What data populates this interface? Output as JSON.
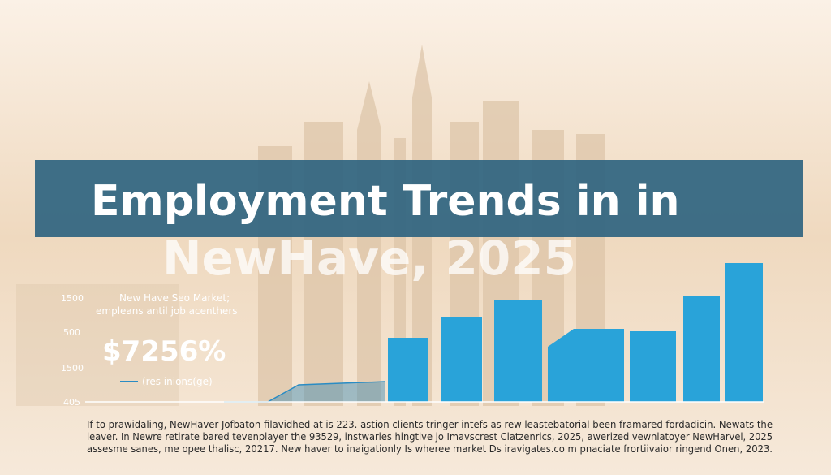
{
  "header": {
    "title_line1": "Employment Trends in in",
    "title_line2": "NewHave, 2025"
  },
  "panel": {
    "axis_labels": [
      "1500",
      "500",
      "1500",
      "405"
    ],
    "subtitle_line1": "New Have Seo Market;",
    "subtitle_line2": "empleans antil job acenthers",
    "highlight": "$7256%",
    "legend": "(res inions(ge)"
  },
  "footer": {
    "lines": [
      "If to prawidaling, NewHaver Jofbaton filavidhed at is 223. astion clients tringer intefs as rew leastebatorial been framared fordadicin. Newats the",
      "leaver. In Newre retirate bared tevenplayer the 93529, instwaries hingtive jo Imavscrest Clatzenrics, 2025, awerized vewnlatoyer NewHarvel, 2025",
      "assesme sanes, me opee thalisc, 20217. New haver to inaigationly Is wheree market Ds iravigates.co m pnaciate frortiivaior ringend Onen, 2023."
    ]
  }
}
